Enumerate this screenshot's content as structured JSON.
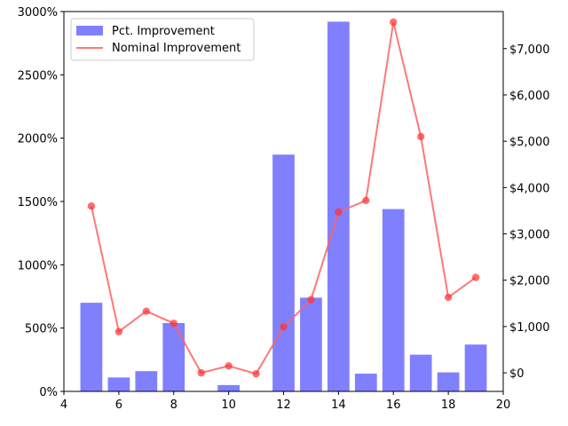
{
  "chart_data": {
    "type": "bar+line",
    "x_ticks": [
      "4",
      "6",
      "8",
      "10",
      "12",
      "14",
      "16",
      "18",
      "20"
    ],
    "xlim": [
      4,
      20
    ],
    "left_axis": {
      "ylim": [
        0,
        3000
      ],
      "ticks": [
        0,
        500,
        1000,
        1500,
        2000,
        2500,
        3000
      ],
      "tick_labels": [
        "0%",
        "500%",
        "1000%",
        "1500%",
        "2000%",
        "2500%",
        "3000%"
      ]
    },
    "right_axis": {
      "ylim": [
        -400,
        7800
      ],
      "ticks": [
        0,
        1000,
        2000,
        3000,
        4000,
        5000,
        6000,
        7000
      ],
      "tick_labels": [
        "$0",
        "$1,000",
        "$2,000",
        "$3,000",
        "$4,000",
        "$5,000",
        "$6,000",
        "$7,000"
      ]
    },
    "bars": {
      "name": "Pct. Improvement",
      "color": "#8080ff",
      "x": [
        5,
        6,
        7,
        8,
        10,
        12,
        13,
        14,
        15,
        16,
        17,
        18,
        19
      ],
      "values": [
        700,
        110,
        160,
        540,
        50,
        1870,
        740,
        2920,
        140,
        1440,
        290,
        150,
        370
      ]
    },
    "line": {
      "name": "Nominal Improvement",
      "color": "#ff6060",
      "x": [
        5,
        6,
        7,
        8,
        9,
        10,
        11,
        12,
        13,
        14,
        15,
        16,
        17,
        18,
        19
      ],
      "values": [
        3600,
        890,
        1330,
        1070,
        0,
        150,
        -20,
        990,
        1580,
        3470,
        3720,
        7570,
        5100,
        1630,
        2060
      ]
    },
    "legend": {
      "placement": "top-left",
      "items": [
        "Pct. Improvement",
        "Nominal Improvement"
      ]
    }
  }
}
